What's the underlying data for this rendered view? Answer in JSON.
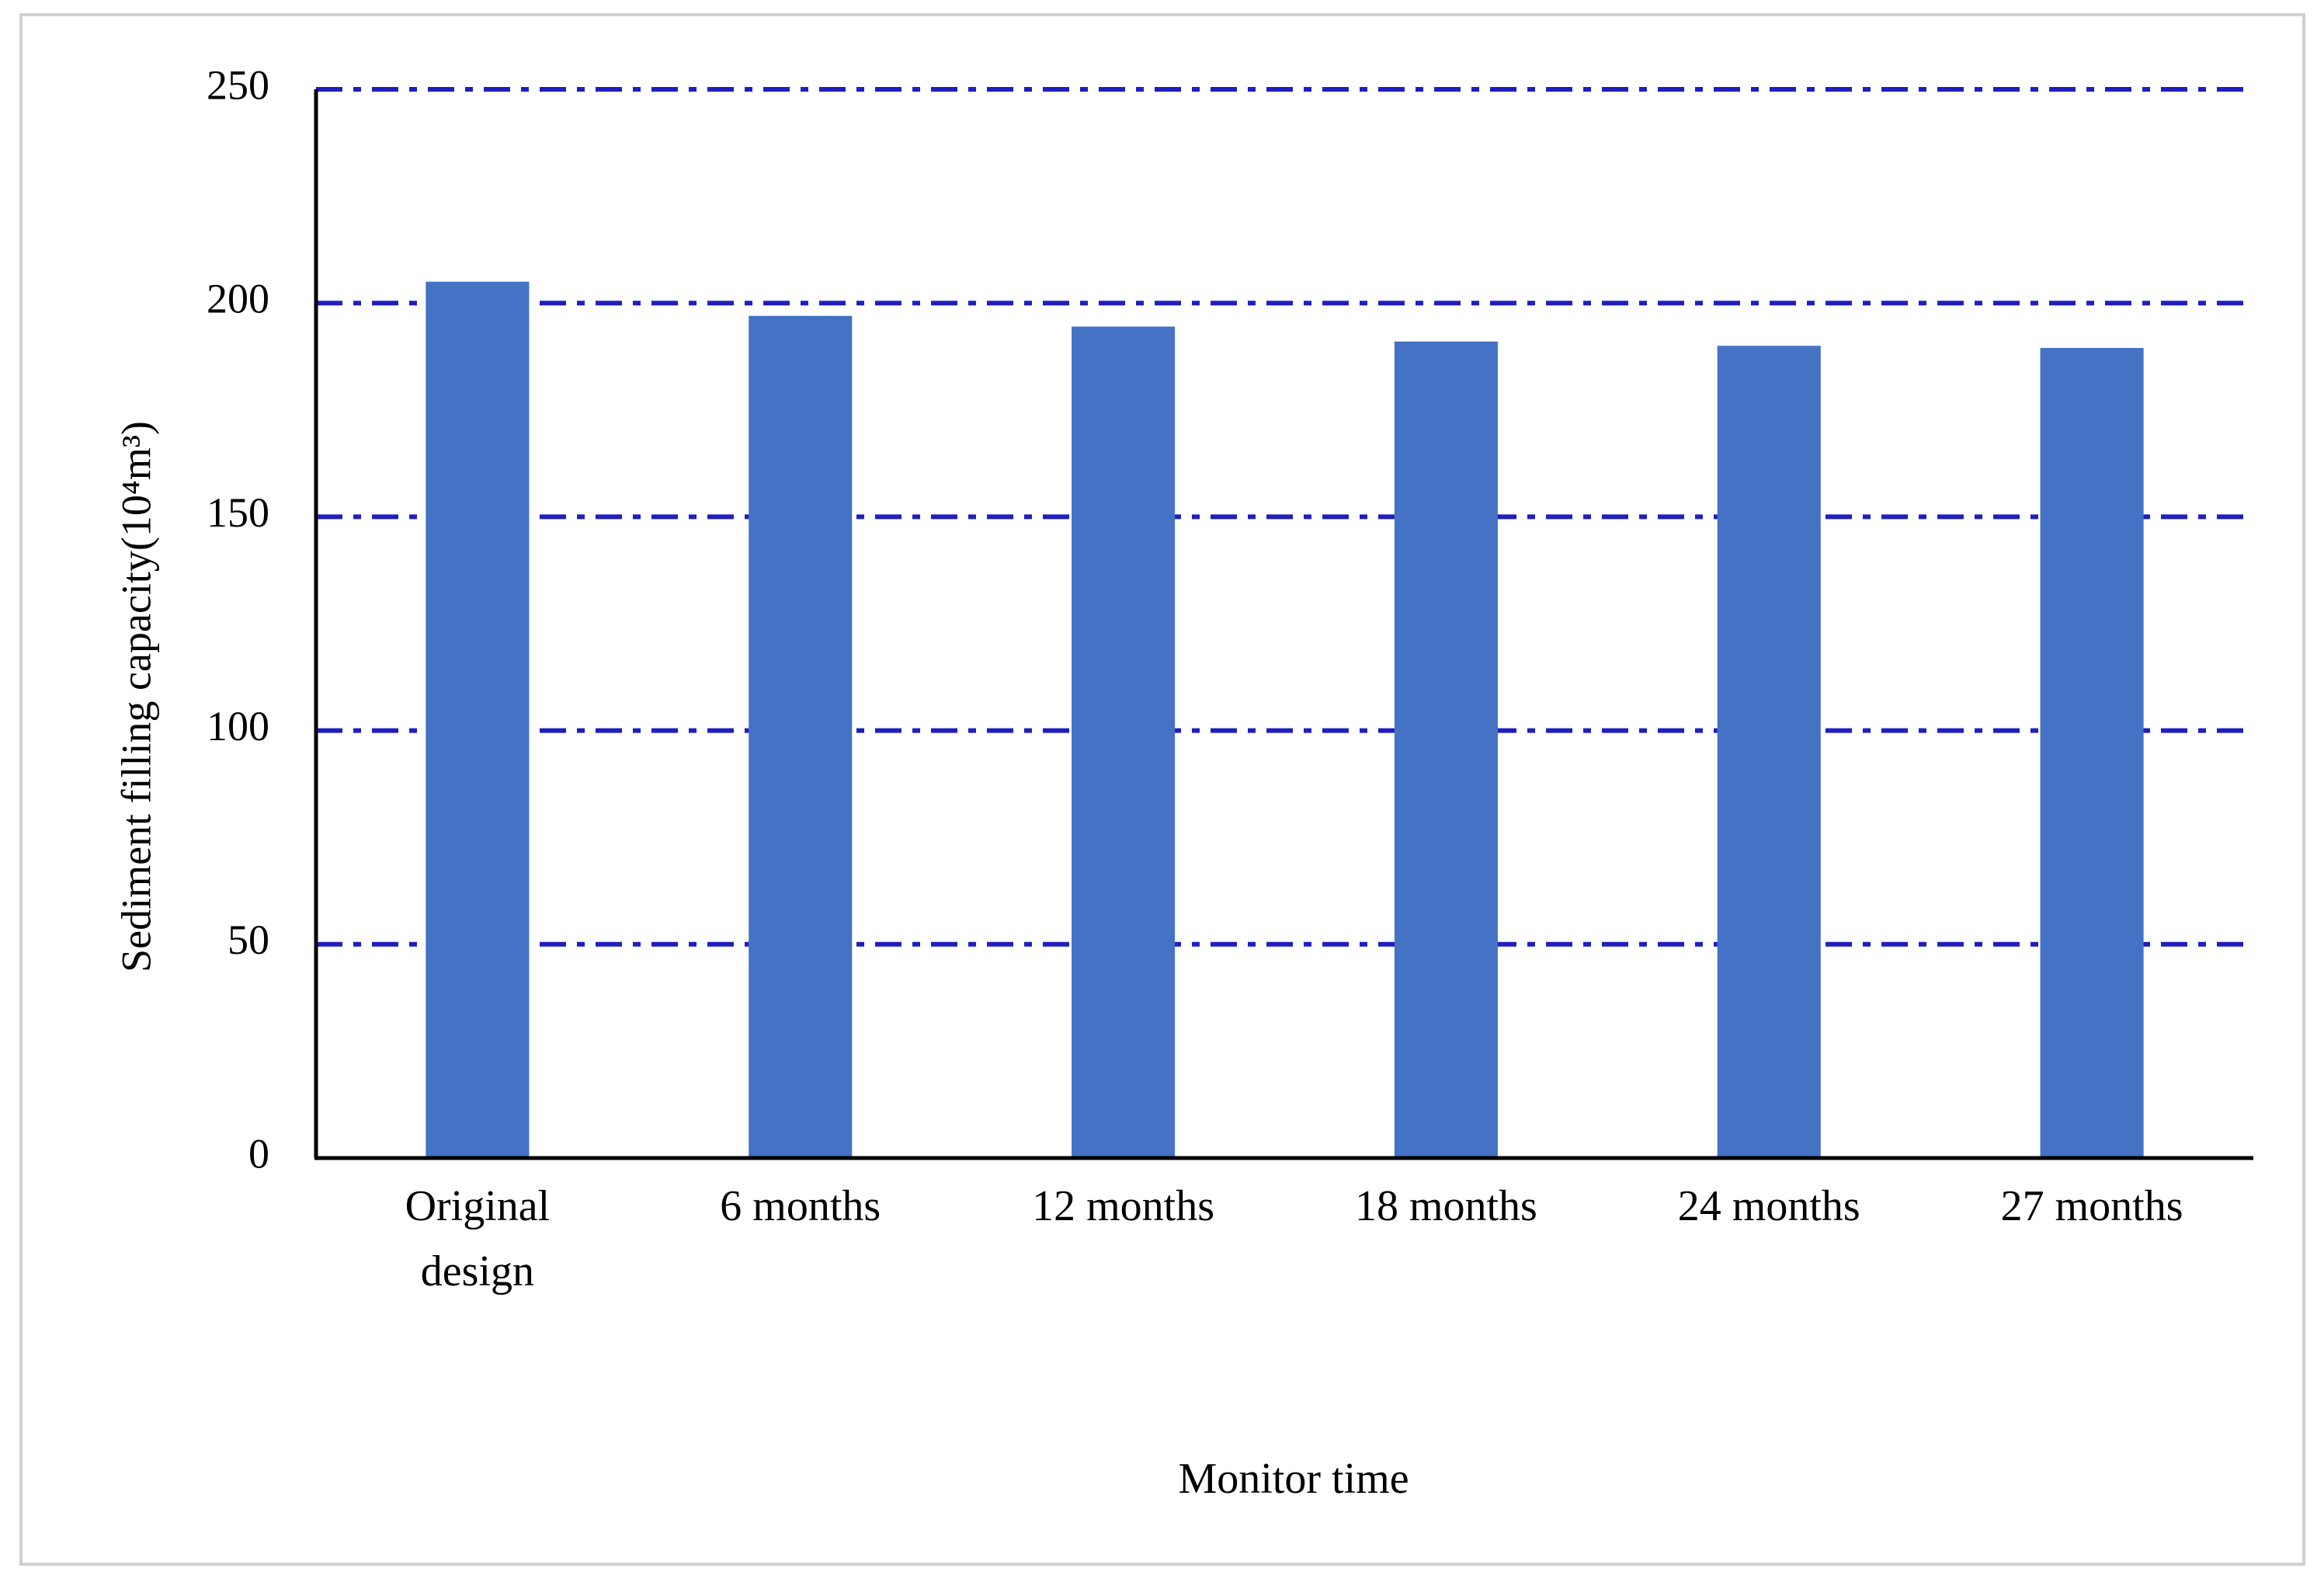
{
  "chart_data": {
    "type": "bar",
    "categories": [
      "Original design",
      "6 months",
      "12 months",
      "18 months",
      "24 months",
      "27 months"
    ],
    "values": [
      205,
      197,
      194.5,
      191,
      190,
      189.5
    ],
    "color": "#4472c4",
    "ylim": [
      0,
      250
    ],
    "yticks": [
      0,
      50,
      100,
      150,
      200,
      250
    ],
    "grid": true,
    "grid_color": "#1f1fbf",
    "xlabel": "Monitor time",
    "ylabel": "Sediment filling capacity(10⁴m³)"
  }
}
